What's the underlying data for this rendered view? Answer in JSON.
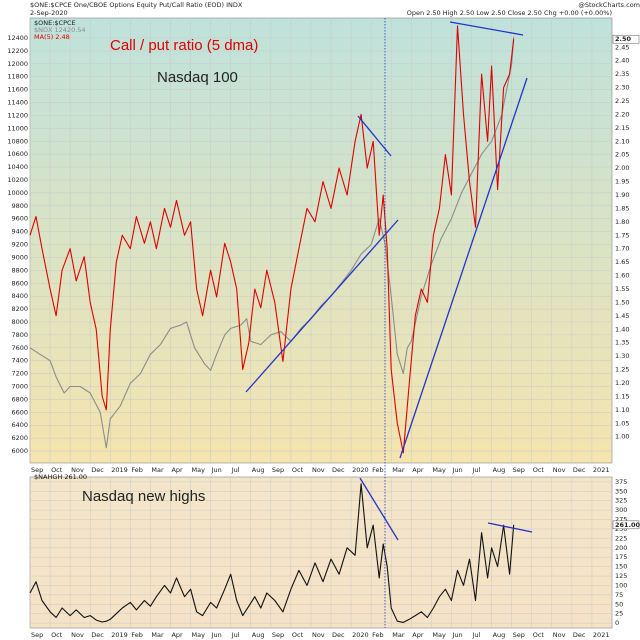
{
  "chart_data": [
    {
      "type": "line",
      "title": "$ONE:$CPCE One/CBOE Options Equity Put/Call Ratio (EOD) INDX",
      "date": "2-Sep-2020",
      "quote": "Open 2.50  High 2.50  Low 2.50  Close 2.50  Chg +0.00 (+0.00%)",
      "credit": "@StockCharts.com",
      "legend_title": "$ONE:$CPCE",
      "last_label": "2.50",
      "annotations": [
        "Call / put ratio (5 dma)",
        "Nasdaq 100"
      ],
      "grid": true,
      "xlim": [
        0,
        29
      ],
      "xticks": [
        {
          "value": 0,
          "label": "Sep"
        },
        {
          "value": 1,
          "label": "Oct"
        },
        {
          "value": 2,
          "label": "Nov"
        },
        {
          "value": 3,
          "label": "Dec"
        },
        {
          "value": 4,
          "label": "2019"
        },
        {
          "value": 5,
          "label": "Feb"
        },
        {
          "value": 6,
          "label": "Mar"
        },
        {
          "value": 7,
          "label": "Apr"
        },
        {
          "value": 8,
          "label": "May"
        },
        {
          "value": 9,
          "label": "Jun"
        },
        {
          "value": 10,
          "label": "Jul"
        },
        {
          "value": 11,
          "label": "Aug"
        },
        {
          "value": 12,
          "label": "Sep"
        },
        {
          "value": 13,
          "label": "Oct"
        },
        {
          "value": 14,
          "label": "Nov"
        },
        {
          "value": 15,
          "label": "Dec"
        },
        {
          "value": 16,
          "label": "2020"
        },
        {
          "value": 17,
          "label": "Feb"
        },
        {
          "value": 18,
          "label": "Mar"
        },
        {
          "value": 19,
          "label": "Apr"
        },
        {
          "value": 20,
          "label": "May"
        },
        {
          "value": 21,
          "label": "Jun"
        },
        {
          "value": 22,
          "label": "Jul"
        },
        {
          "value": 23,
          "label": "Aug"
        },
        {
          "value": 24,
          "label": "Sep"
        },
        {
          "value": 25,
          "label": "Oct"
        },
        {
          "value": 26,
          "label": "Nov"
        },
        {
          "value": 27,
          "label": "Dec"
        },
        {
          "value": 28,
          "label": "2021"
        }
      ],
      "ylim": [
        5815,
        12710
      ],
      "yticks": [
        6000,
        6200,
        6400,
        6600,
        6800,
        7000,
        7200,
        7400,
        7600,
        7800,
        8000,
        8200,
        8400,
        8600,
        8800,
        9000,
        9200,
        9400,
        9600,
        9800,
        10000,
        10200,
        10400,
        10600,
        10800,
        11000,
        11200,
        11400,
        11600,
        11800,
        12000,
        12200,
        12400
      ],
      "y2lim": [
        0.902,
        2.559
      ],
      "y2ticks": [
        {
          "value": 1.0,
          "label": "1.00"
        },
        {
          "value": 1.05,
          "label": "1.05"
        },
        {
          "value": 1.1,
          "label": "1.10"
        },
        {
          "value": 1.15,
          "label": "1.15"
        },
        {
          "value": 1.2,
          "label": "1.20"
        },
        {
          "value": 1.25,
          "label": "1.25"
        },
        {
          "value": 1.3,
          "label": "1.30"
        },
        {
          "value": 1.35,
          "label": "1.35"
        },
        {
          "value": 1.4,
          "label": "1.40"
        },
        {
          "value": 1.45,
          "label": "1.45"
        },
        {
          "value": 1.5,
          "label": "1.50"
        },
        {
          "value": 1.55,
          "label": "1.55"
        },
        {
          "value": 1.6,
          "label": "1.60"
        },
        {
          "value": 1.65,
          "label": "1.65"
        },
        {
          "value": 1.7,
          "label": "1.70"
        },
        {
          "value": 1.75,
          "label": "1.75"
        },
        {
          "value": 1.8,
          "label": "1.80"
        },
        {
          "value": 1.85,
          "label": "1.85"
        },
        {
          "value": 1.9,
          "label": "1.90"
        },
        {
          "value": 1.95,
          "label": "1.95"
        },
        {
          "value": 2.0,
          "label": "2.00"
        },
        {
          "value": 2.05,
          "label": "2.05"
        },
        {
          "value": 2.1,
          "label": "2.10"
        },
        {
          "value": 2.15,
          "label": "2.15"
        },
        {
          "value": 2.2,
          "label": "2.20"
        },
        {
          "value": 2.25,
          "label": "2.25"
        },
        {
          "value": 2.3,
          "label": "2.30"
        },
        {
          "value": 2.35,
          "label": "2.35"
        },
        {
          "value": 2.4,
          "label": "2.40"
        },
        {
          "value": 2.45,
          "label": "2.45"
        }
      ],
      "series": [
        {
          "name": "$NDX 12420.54",
          "color": "#8c8c8c",
          "axis": "y",
          "x": [
            0,
            0.5,
            1,
            1.3,
            1.7,
            2,
            2.5,
            3,
            3.5,
            3.8,
            4,
            4.5,
            5,
            5.5,
            6,
            6.5,
            7,
            7.5,
            7.8,
            8.2,
            8.7,
            9,
            9.3,
            9.7,
            10,
            10.5,
            10.8,
            11,
            11.5,
            12,
            12.5,
            13,
            13.5,
            14,
            14.5,
            15,
            15.5,
            16,
            16.5,
            17,
            17.4,
            17.7,
            18,
            18.3,
            18.6,
            18.8,
            19,
            19.5,
            20,
            20.5,
            21,
            21.5,
            22,
            22.5,
            23,
            23.5,
            24,
            24.1
          ],
          "values": [
            7600,
            7500,
            7400,
            7150,
            6900,
            7000,
            7000,
            6900,
            6600,
            6050,
            6500,
            6700,
            7050,
            7200,
            7500,
            7650,
            7900,
            7950,
            8000,
            7600,
            7350,
            7250,
            7500,
            7800,
            7900,
            7950,
            8050,
            7700,
            7650,
            7800,
            7850,
            7700,
            7900,
            8050,
            8250,
            8400,
            8600,
            8800,
            9050,
            9200,
            9600,
            9200,
            8400,
            7500,
            7200,
            7600,
            7700,
            8400,
            8900,
            9300,
            9600,
            10000,
            10300,
            10600,
            10800,
            11200,
            12000,
            12420.54
          ]
        },
        {
          "name": "MA(5) 2.48",
          "color": "#e00000",
          "axis": "y2",
          "x": [
            0,
            0.3,
            0.6,
            1,
            1.3,
            1.6,
            2,
            2.3,
            2.7,
            3,
            3.3,
            3.6,
            3.8,
            4,
            4.3,
            4.6,
            5,
            5.3,
            5.7,
            6,
            6.3,
            6.7,
            7,
            7.3,
            7.7,
            8,
            8.3,
            8.6,
            9,
            9.3,
            9.7,
            10,
            10.3,
            10.6,
            10.9,
            11.2,
            11.5,
            11.8,
            12.2,
            12.6,
            13,
            13.4,
            13.8,
            14.2,
            14.6,
            15,
            15.4,
            15.8,
            16.2,
            16.5,
            16.8,
            17.1,
            17.4,
            17.6,
            17.8,
            18,
            18.3,
            18.6,
            18.9,
            19.2,
            19.5,
            19.8,
            20.1,
            20.4,
            20.7,
            21,
            21.3,
            21.6,
            21.9,
            22.2,
            22.5,
            22.8,
            23,
            23.3,
            23.6,
            23.9,
            24.1
          ],
          "values": [
            1.75,
            1.82,
            1.7,
            1.55,
            1.45,
            1.62,
            1.7,
            1.58,
            1.67,
            1.5,
            1.4,
            1.15,
            1.1,
            1.4,
            1.65,
            1.75,
            1.7,
            1.82,
            1.72,
            1.8,
            1.7,
            1.85,
            1.78,
            1.88,
            1.75,
            1.8,
            1.55,
            1.45,
            1.62,
            1.52,
            1.72,
            1.65,
            1.55,
            1.25,
            1.35,
            1.55,
            1.48,
            1.62,
            1.5,
            1.28,
            1.55,
            1.7,
            1.85,
            1.8,
            1.95,
            1.85,
            2.0,
            1.9,
            2.1,
            2.2,
            2.0,
            2.1,
            1.75,
            1.9,
            1.7,
            1.25,
            1.05,
            0.94,
            1.2,
            1.45,
            1.55,
            1.5,
            1.75,
            1.85,
            2.05,
            1.9,
            2.53,
            2.2,
            1.95,
            1.78,
            2.35,
            2.1,
            2.38,
            1.92,
            2.3,
            2.35,
            2.48
          ]
        }
      ]
    },
    {
      "type": "line",
      "annotations": [
        "Nasdaq new highs"
      ],
      "last_label": "261.00",
      "grid": true,
      "yaxis_position": "right",
      "xlim": [
        0,
        29
      ],
      "xticks": [
        {
          "value": 0,
          "label": "Sep"
        },
        {
          "value": 1,
          "label": "Oct"
        },
        {
          "value": 2,
          "label": "Nov"
        },
        {
          "value": 3,
          "label": "Dec"
        },
        {
          "value": 4,
          "label": "2019"
        },
        {
          "value": 5,
          "label": "Feb"
        },
        {
          "value": 6,
          "label": "Mar"
        },
        {
          "value": 7,
          "label": "Apr"
        },
        {
          "value": 8,
          "label": "May"
        },
        {
          "value": 9,
          "label": "Jun"
        },
        {
          "value": 10,
          "label": "Jul"
        },
        {
          "value": 11,
          "label": "Aug"
        },
        {
          "value": 12,
          "label": "Sep"
        },
        {
          "value": 13,
          "label": "Oct"
        },
        {
          "value": 14,
          "label": "Nov"
        },
        {
          "value": 15,
          "label": "Dec"
        },
        {
          "value": 16,
          "label": "2020"
        },
        {
          "value": 17,
          "label": "Feb"
        },
        {
          "value": 18,
          "label": "Mar"
        },
        {
          "value": 19,
          "label": "Apr"
        },
        {
          "value": 20,
          "label": "May"
        },
        {
          "value": 21,
          "label": "Jun"
        },
        {
          "value": 22,
          "label": "Jul"
        },
        {
          "value": 23,
          "label": "Aug"
        },
        {
          "value": 24,
          "label": "Sep"
        },
        {
          "value": 25,
          "label": "Oct"
        },
        {
          "value": 26,
          "label": "Nov"
        },
        {
          "value": 27,
          "label": "Dec"
        },
        {
          "value": 28,
          "label": "2021"
        }
      ],
      "ylim": [
        -13,
        388
      ],
      "yticks": [
        0,
        25,
        50,
        75,
        100,
        125,
        150,
        175,
        200,
        225,
        250,
        275,
        300,
        325,
        350,
        375
      ],
      "series": [
        {
          "name": "$NAHGH 261.00",
          "color": "#111111",
          "axis": "y",
          "x": [
            0,
            0.3,
            0.6,
            1,
            1.3,
            1.6,
            2,
            2.3,
            2.7,
            3,
            3.3,
            3.6,
            3.8,
            4,
            4.3,
            4.6,
            5,
            5.3,
            5.7,
            6,
            6.3,
            6.7,
            7,
            7.3,
            7.7,
            8,
            8.3,
            8.6,
            9,
            9.3,
            9.7,
            10,
            10.3,
            10.6,
            10.9,
            11.2,
            11.5,
            11.8,
            12.2,
            12.6,
            13,
            13.4,
            13.8,
            14.2,
            14.6,
            15,
            15.4,
            15.8,
            16.2,
            16.5,
            16.8,
            17.1,
            17.4,
            17.6,
            17.8,
            18,
            18.3,
            18.6,
            18.9,
            19.2,
            19.5,
            19.8,
            20.1,
            20.4,
            20.7,
            21,
            21.3,
            21.6,
            21.9,
            22.2,
            22.5,
            22.8,
            23,
            23.3,
            23.6,
            23.9,
            24.1
          ],
          "values": [
            80,
            110,
            60,
            30,
            15,
            40,
            20,
            35,
            15,
            20,
            8,
            3,
            5,
            10,
            25,
            40,
            55,
            35,
            60,
            45,
            70,
            100,
            80,
            120,
            70,
            90,
            30,
            20,
            55,
            40,
            90,
            130,
            60,
            20,
            45,
            70,
            40,
            80,
            60,
            30,
            90,
            140,
            100,
            160,
            110,
            170,
            130,
            200,
            180,
            370,
            200,
            260,
            120,
            210,
            150,
            40,
            5,
            2,
            10,
            20,
            30,
            15,
            40,
            70,
            90,
            60,
            140,
            100,
            170,
            60,
            240,
            120,
            200,
            150,
            260,
            130,
            261
          ]
        }
      ]
    }
  ]
}
